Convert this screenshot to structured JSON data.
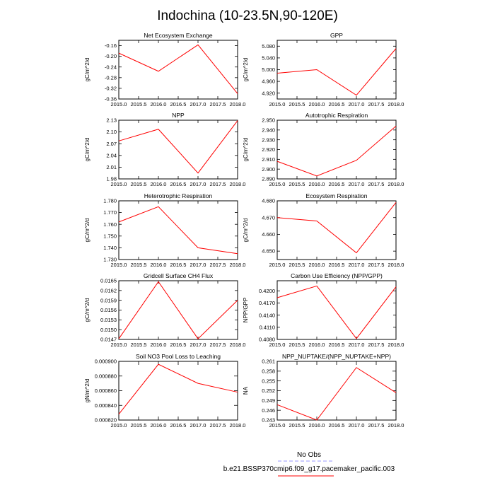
{
  "figure": {
    "title": "Indochina (10-23.5N,90-120E)"
  },
  "legend": {
    "entries": [
      {
        "label": "No Obs",
        "color": "#9999ff",
        "dash": true
      },
      {
        "label": "b.e21.BSSP370cmip6.f09_g17.pacemaker_pacific.003",
        "color": "#ff0000",
        "dash": false
      }
    ]
  },
  "colors": {
    "series": "#ff0000"
  },
  "chart_data": [
    {
      "type": "line",
      "title": "Net Ecosystem Exchange",
      "ylabel": "gC/m^2/d",
      "x": [
        2015.0,
        2016.0,
        2017.0,
        2018.0
      ],
      "values": [
        -0.188,
        -0.256,
        -0.157,
        -0.34
      ],
      "ylim": [
        -0.36,
        -0.14
      ],
      "xlim": [
        2015.0,
        2018.0
      ],
      "yticks": [
        "-0.16",
        "-0.20",
        "-0.24",
        "-0.28",
        "-0.32",
        "-0.36"
      ],
      "xticks": [
        "2015.0",
        "2015.5",
        "2016.0",
        "2016.5",
        "2017.0",
        "2017.5",
        "2018.0"
      ]
    },
    {
      "type": "line",
      "title": "GPP",
      "ylabel": "gC/m^2/d",
      "x": [
        2015.0,
        2016.0,
        2017.0,
        2018.0
      ],
      "values": [
        4.988,
        5.0,
        4.913,
        5.072
      ],
      "ylim": [
        4.9,
        5.1
      ],
      "xlim": [
        2015.0,
        2018.0
      ],
      "yticks": [
        "5.080",
        "5.040",
        "5.000",
        "4.960",
        "4.920"
      ],
      "xticks": [
        "2015.0",
        "2015.5",
        "2016.0",
        "2016.5",
        "2017.0",
        "2017.5",
        "2018.0"
      ]
    },
    {
      "type": "line",
      "title": "NPP",
      "ylabel": "gC/m^2/d",
      "x": [
        2015.0,
        2016.0,
        2017.0,
        2018.0
      ],
      "values": [
        2.077,
        2.107,
        1.995,
        2.129
      ],
      "ylim": [
        1.98,
        2.13
      ],
      "xlim": [
        2015.0,
        2018.0
      ],
      "yticks": [
        "2.13",
        "2.10",
        "2.07",
        "2.04",
        "2.01",
        "1.98"
      ],
      "xticks": [
        "2015.0",
        "2015.5",
        "2016.0",
        "2016.5",
        "2017.0",
        "2017.5",
        "2018.0"
      ]
    },
    {
      "type": "line",
      "title": "Autotrophic Respiration",
      "ylabel": "gC/m^2/d",
      "x": [
        2015.0,
        2016.0,
        2017.0,
        2018.0
      ],
      "values": [
        2.908,
        2.893,
        2.909,
        2.944
      ],
      "ylim": [
        2.89,
        2.95
      ],
      "xlim": [
        2015.0,
        2018.0
      ],
      "yticks": [
        "2.950",
        "2.940",
        "2.930",
        "2.920",
        "2.910",
        "2.900",
        "2.890"
      ],
      "xticks": [
        "2015.0",
        "2015.5",
        "2016.0",
        "2016.5",
        "2017.0",
        "2017.5",
        "2018.0"
      ]
    },
    {
      "type": "line",
      "title": "Heterotrophic Respiration",
      "ylabel": "gC/m^2/d",
      "x": [
        2015.0,
        2016.0,
        2017.0,
        2018.0
      ],
      "values": [
        1.762,
        1.775,
        1.74,
        1.735
      ],
      "ylim": [
        1.73,
        1.78
      ],
      "xlim": [
        2015.0,
        2018.0
      ],
      "yticks": [
        "1.780",
        "1.770",
        "1.760",
        "1.750",
        "1.740",
        "1.730"
      ],
      "xticks": [
        "2015.0",
        "2015.5",
        "2016.0",
        "2016.5",
        "2017.0",
        "2017.5",
        "2018.0"
      ]
    },
    {
      "type": "line",
      "title": "Ecosystem Respiration",
      "ylabel": "gC/m^2/d",
      "x": [
        2015.0,
        2016.0,
        2017.0,
        2018.0
      ],
      "values": [
        4.67,
        4.668,
        4.649,
        4.679
      ],
      "ylim": [
        4.645,
        4.68
      ],
      "xlim": [
        2015.0,
        2018.0
      ],
      "yticks": [
        "4.680",
        "4.670",
        "4.660",
        "4.650"
      ],
      "xticks": [
        "2015.0",
        "2015.5",
        "2016.0",
        "2016.5",
        "2017.0",
        "2017.5",
        "2018.0"
      ]
    },
    {
      "type": "line",
      "title": "Gridcell Surface CH4 Flux",
      "ylabel": "gC/m^2/d",
      "x": [
        2015.0,
        2016.0,
        2017.0,
        2018.0
      ],
      "values": [
        0.01472,
        0.01647,
        0.01472,
        0.0159
      ],
      "ylim": [
        0.0147,
        0.0165
      ],
      "xlim": [
        2015.0,
        2018.0
      ],
      "yticks": [
        "0.0165",
        "0.0162",
        "0.0159",
        "0.0156",
        "0.0153",
        "0.0150",
        "0.0147"
      ],
      "xticks": [
        "2015.0",
        "2015.5",
        "2016.0",
        "2016.5",
        "2017.0",
        "2017.5",
        "2018.0"
      ]
    },
    {
      "type": "line",
      "title": "Carbon Use Efficiency (NPP/GPP)",
      "ylabel": "NPP/GPP",
      "x": [
        2015.0,
        2016.0,
        2017.0,
        2018.0
      ],
      "values": [
        0.4183,
        0.4212,
        0.4082,
        0.421
      ],
      "ylim": [
        0.408,
        0.4225
      ],
      "xlim": [
        2015.0,
        2018.0
      ],
      "yticks": [
        "0.4200",
        "0.4170",
        "0.4140",
        "0.4110",
        "0.4080"
      ],
      "xticks": [
        "2015.0",
        "2015.5",
        "2016.0",
        "2016.5",
        "2017.0",
        "2017.5",
        "2018.0"
      ]
    },
    {
      "type": "line",
      "title": "Soil NO3 Pool Loss to Leaching",
      "ylabel": "gN/m^2/d",
      "x": [
        2015.0,
        2016.0,
        2017.0,
        2018.0
      ],
      "values": [
        0.000828,
        0.000896,
        0.00087,
        0.000858
      ],
      "ylim": [
        0.00082,
        0.0009
      ],
      "xlim": [
        2015.0,
        2018.0
      ],
      "yticks": [
        "0.000900",
        "0.000880",
        "0.000860",
        "0.000840",
        "0.000820"
      ],
      "xticks": [
        "2015.0",
        "2015.5",
        "2016.0",
        "2016.5",
        "2017.0",
        "2017.5",
        "2018.0"
      ]
    },
    {
      "type": "line",
      "title": "NPP_NUPTAKE/(NPP_NUPTAKE+NPP)",
      "ylabel": "NA",
      "x": [
        2015.0,
        2016.0,
        2017.0,
        2018.0
      ],
      "values": [
        0.2477,
        0.243,
        0.2591,
        0.2514
      ],
      "ylim": [
        0.243,
        0.261
      ],
      "xlim": [
        2015.0,
        2018.0
      ],
      "yticks": [
        "0.261",
        "0.258",
        "0.255",
        "0.252",
        "0.249",
        "0.246",
        "0.243"
      ],
      "xticks": [
        "2015.0",
        "2015.5",
        "2016.0",
        "2016.5",
        "2017.0",
        "2017.5",
        "2018.0"
      ]
    }
  ]
}
